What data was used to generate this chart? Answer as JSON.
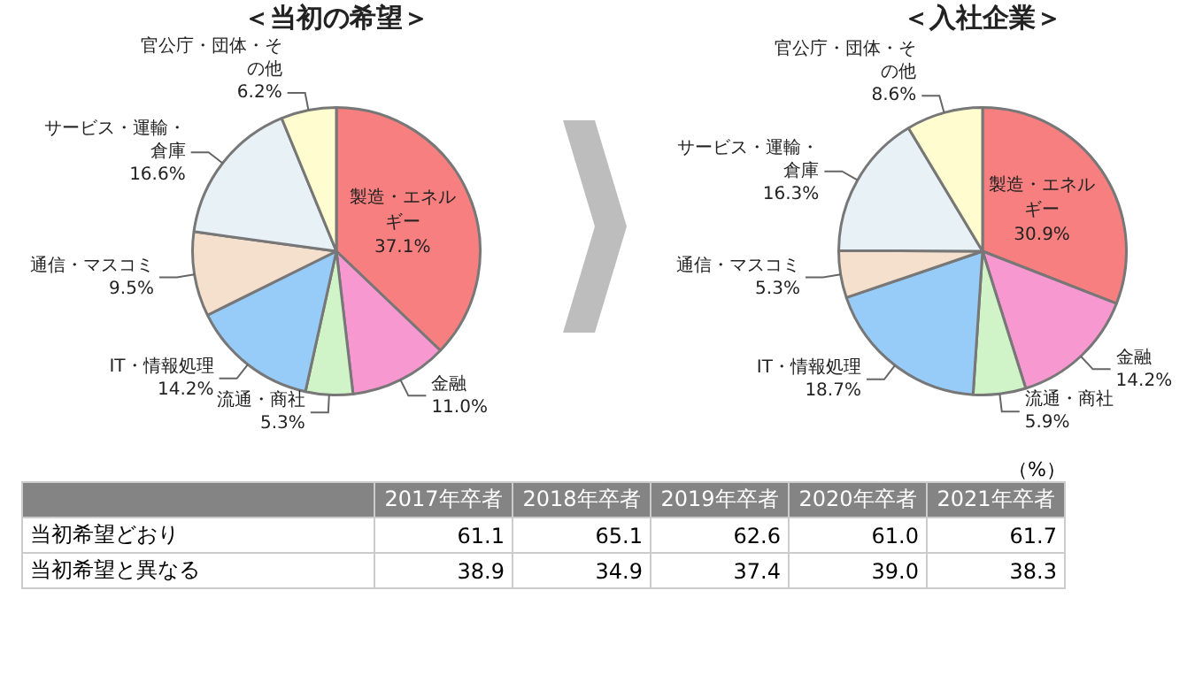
{
  "chart_data": [
    {
      "type": "pie",
      "title": "＜当初の希望＞",
      "categories": [
        "製造・エネルギー",
        "金融",
        "流通・商社",
        "IT・情報処理",
        "通信・マスコミ",
        "サービス・運輸・倉庫",
        "官公庁・団体・その他"
      ],
      "values": [
        37.1,
        11.0,
        5.3,
        14.2,
        9.5,
        16.6,
        6.2
      ],
      "value_labels": [
        "37.1%",
        "11.0%",
        "5.3%",
        "14.2%",
        "9.5%",
        "16.6%",
        "6.2%"
      ],
      "colors": [
        "#f87f7f",
        "#f898d0",
        "#d0f4c8",
        "#98ccf8",
        "#f4e0cc",
        "#e8f2f6",
        "#fffcd0"
      ],
      "legend": false
    },
    {
      "type": "pie",
      "title": "＜入社企業＞",
      "categories": [
        "製造・エネルギー",
        "金融",
        "流通・商社",
        "IT・情報処理",
        "通信・マスコミ",
        "サービス・運輸・倉庫",
        "官公庁・団体・その他"
      ],
      "values": [
        30.9,
        14.2,
        5.9,
        18.7,
        5.3,
        16.3,
        8.6
      ],
      "value_labels": [
        "30.9%",
        "14.2%",
        "5.9%",
        "18.7%",
        "5.3%",
        "16.3%",
        "8.6%"
      ],
      "colors": [
        "#f87f7f",
        "#f898d0",
        "#d0f4c8",
        "#98ccf8",
        "#f4e0cc",
        "#e8f2f6",
        "#fffcd0"
      ],
      "legend": false
    },
    {
      "type": "heatmap",
      "categories": [
        "2017年卒者",
        "2018年卒者",
        "2019年卒者",
        "2020年卒者",
        "2021年卒者"
      ],
      "y_categories": [
        "当初希望どおり",
        "当初希望と異なる"
      ],
      "cells": [
        [
          61.1,
          65.1,
          62.6,
          61.0,
          61.7
        ],
        [
          38.9,
          34.9,
          37.4,
          39.0,
          38.3
        ]
      ],
      "cell_labels": [
        [
          "61.1",
          "65.1",
          "62.6",
          "61.0",
          "61.7"
        ],
        [
          "38.9",
          "34.9",
          "37.4",
          "39.0",
          "38.3"
        ]
      ],
      "annotations": [
        "（%）"
      ]
    }
  ]
}
